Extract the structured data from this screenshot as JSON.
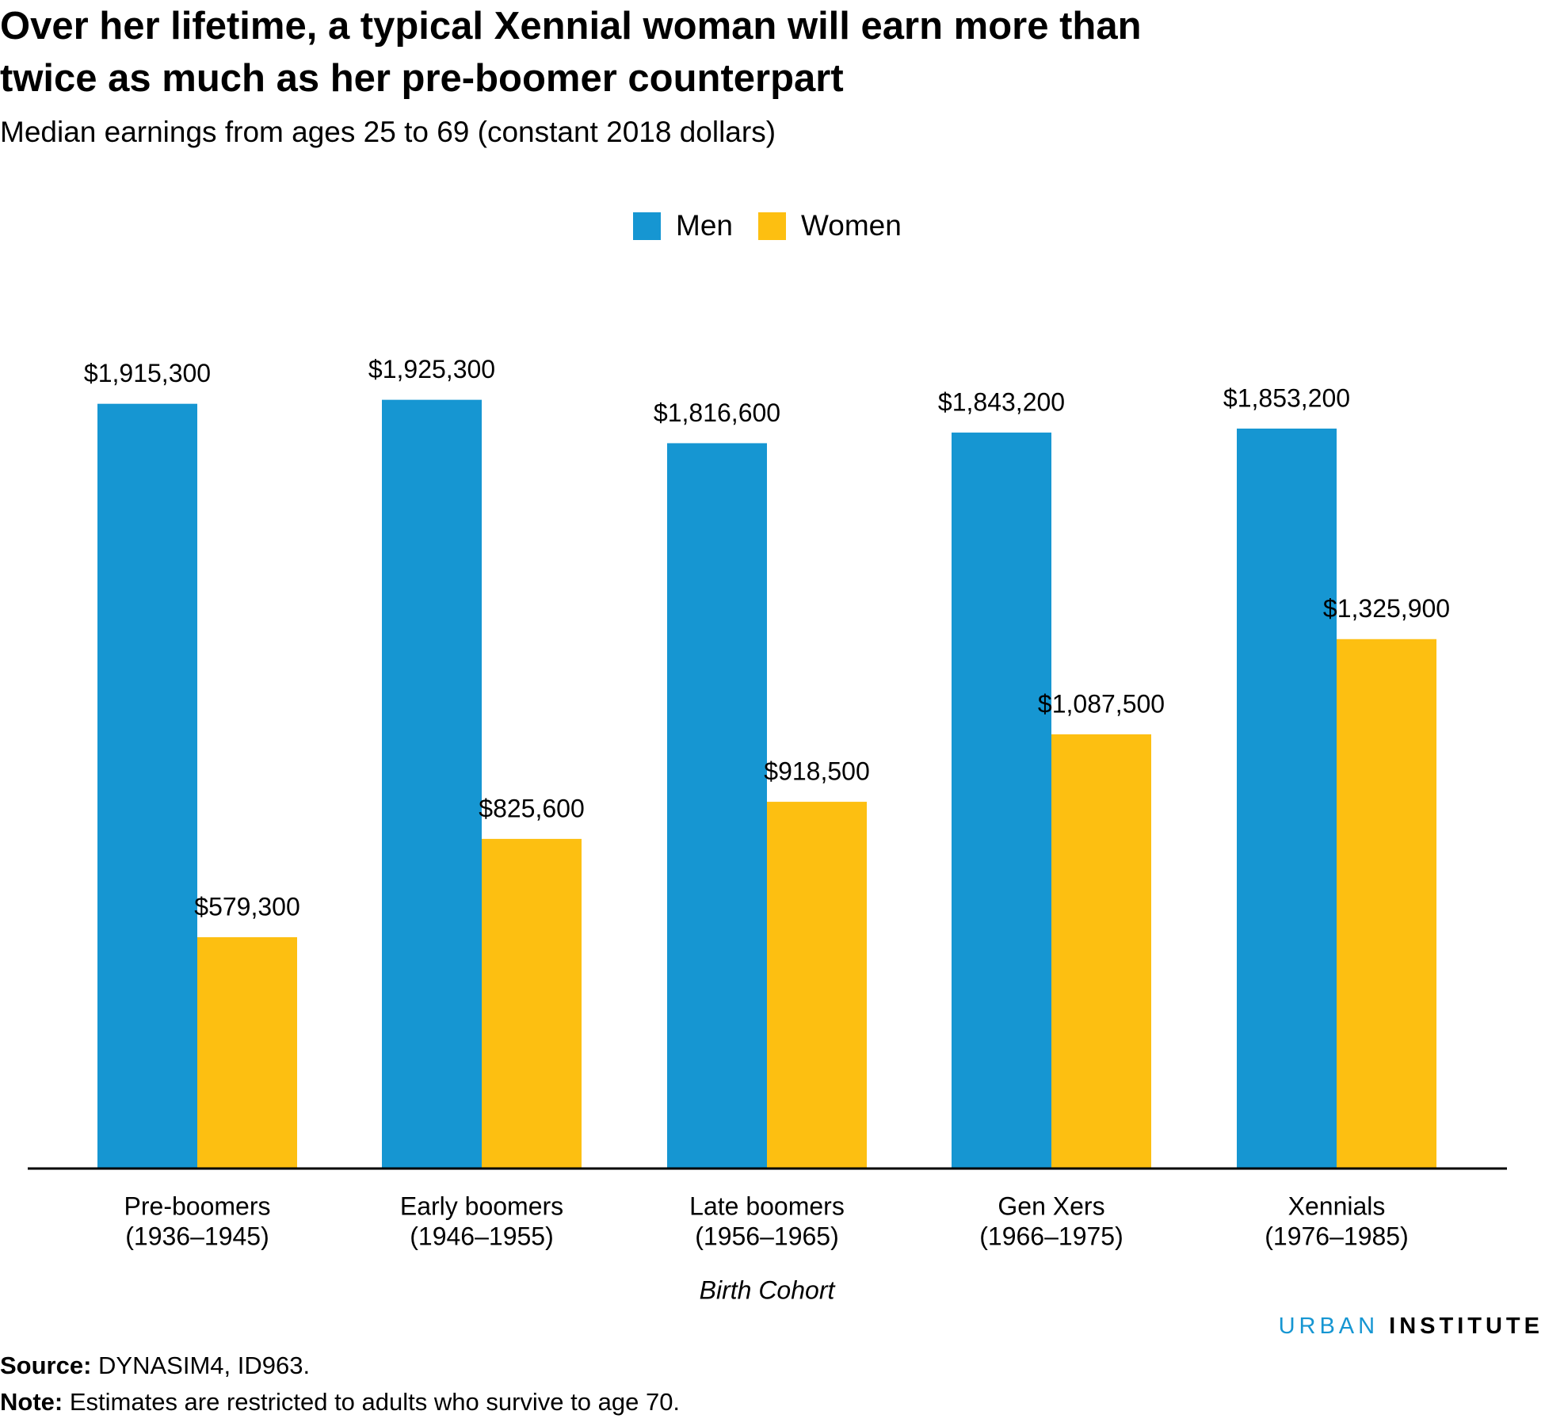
{
  "chart_data": {
    "type": "bar",
    "title": "Over her lifetime, a typical Xennial woman will earn more than twice as much as her pre-boomer counterpart",
    "subtitle": "Median earnings from ages 25 to 69 (constant 2018 dollars)",
    "x_label": "Birth Cohort",
    "categories": [
      [
        "Pre-boomers",
        "(1936–1945)"
      ],
      [
        "Early boomers",
        "(1946–1955)"
      ],
      [
        "Late boomers",
        "(1956–1965)"
      ],
      [
        "Gen Xers",
        "(1966–1975)"
      ],
      [
        "Xennials",
        "(1976–1985)"
      ]
    ],
    "series": [
      {
        "name": "Men",
        "color": "#1696d2",
        "values": [
          1915300,
          1925300,
          1816600,
          1843200,
          1853200
        ],
        "value_labels": [
          "$1,915,300",
          "$1,925,300",
          "$1,816,600",
          "$1,843,200",
          "$1,853,200"
        ]
      },
      {
        "name": "Women",
        "color": "#fdbf11",
        "values": [
          579300,
          825600,
          918500,
          1087500,
          1325900
        ],
        "value_labels": [
          "$579,300",
          "$825,600",
          "$918,500",
          "$1,087,500",
          "$1,325,900"
        ]
      }
    ],
    "ylim": [
      0,
      2000000
    ],
    "grid": false
  },
  "branding": {
    "first": "URBAN",
    "second": "INSTITUTE"
  },
  "footer": {
    "source_label": "Source:",
    "source": "DYNASIM4, ID963.",
    "note_label": "Note:",
    "note": "Estimates are restricted to adults who survive to age 70."
  }
}
